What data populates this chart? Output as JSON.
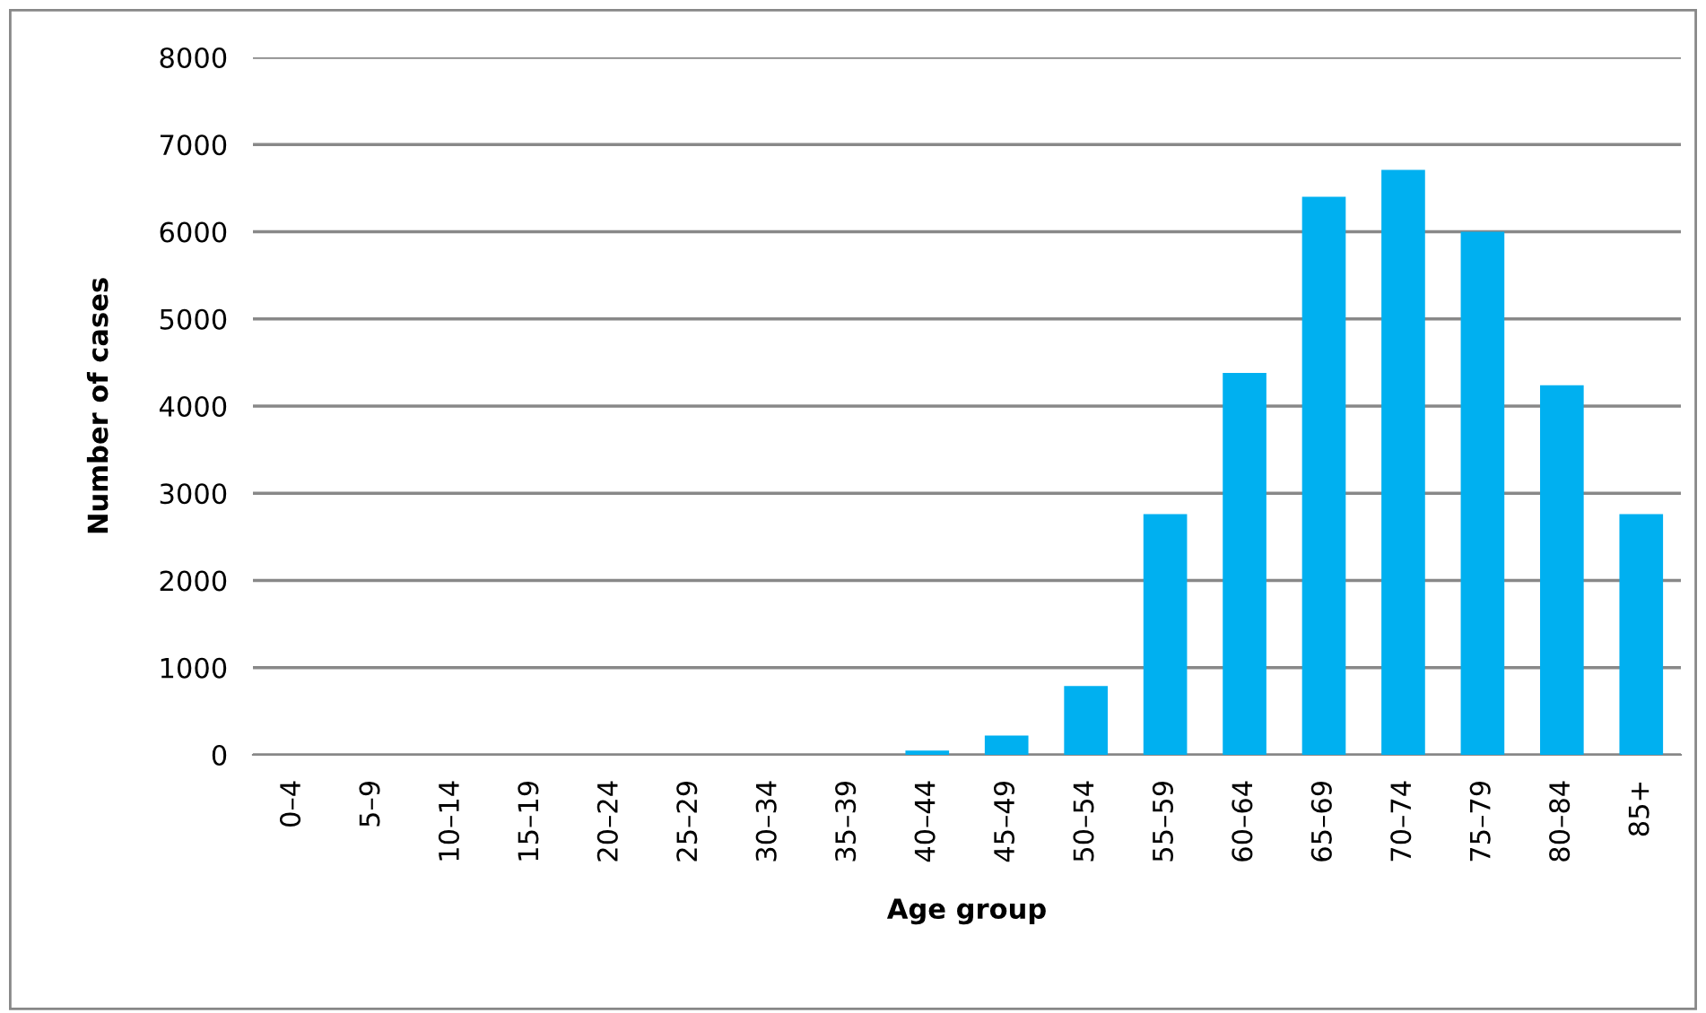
{
  "chart_data": {
    "type": "bar",
    "xlabel": "Age group",
    "ylabel": "Number of cases",
    "categories": [
      "0–4",
      "5–9",
      "10–14",
      "15–19",
      "20–24",
      "25–29",
      "30–34",
      "35–39",
      "40–44",
      "45–49",
      "50–54",
      "55–59",
      "60–64",
      "65–69",
      "70–74",
      "75–79",
      "80–84",
      "85+"
    ],
    "values": [
      0,
      0,
      0,
      0,
      0,
      0,
      0,
      0,
      50,
      220,
      790,
      2760,
      4380,
      6400,
      6710,
      6000,
      4240,
      2760
    ],
    "color": "#00b0f0",
    "ylim": [
      0,
      8000
    ],
    "yticks": [
      0,
      1000,
      2000,
      3000,
      4000,
      5000,
      6000,
      7000,
      8000
    ],
    "grid": "y",
    "legend": false
  }
}
